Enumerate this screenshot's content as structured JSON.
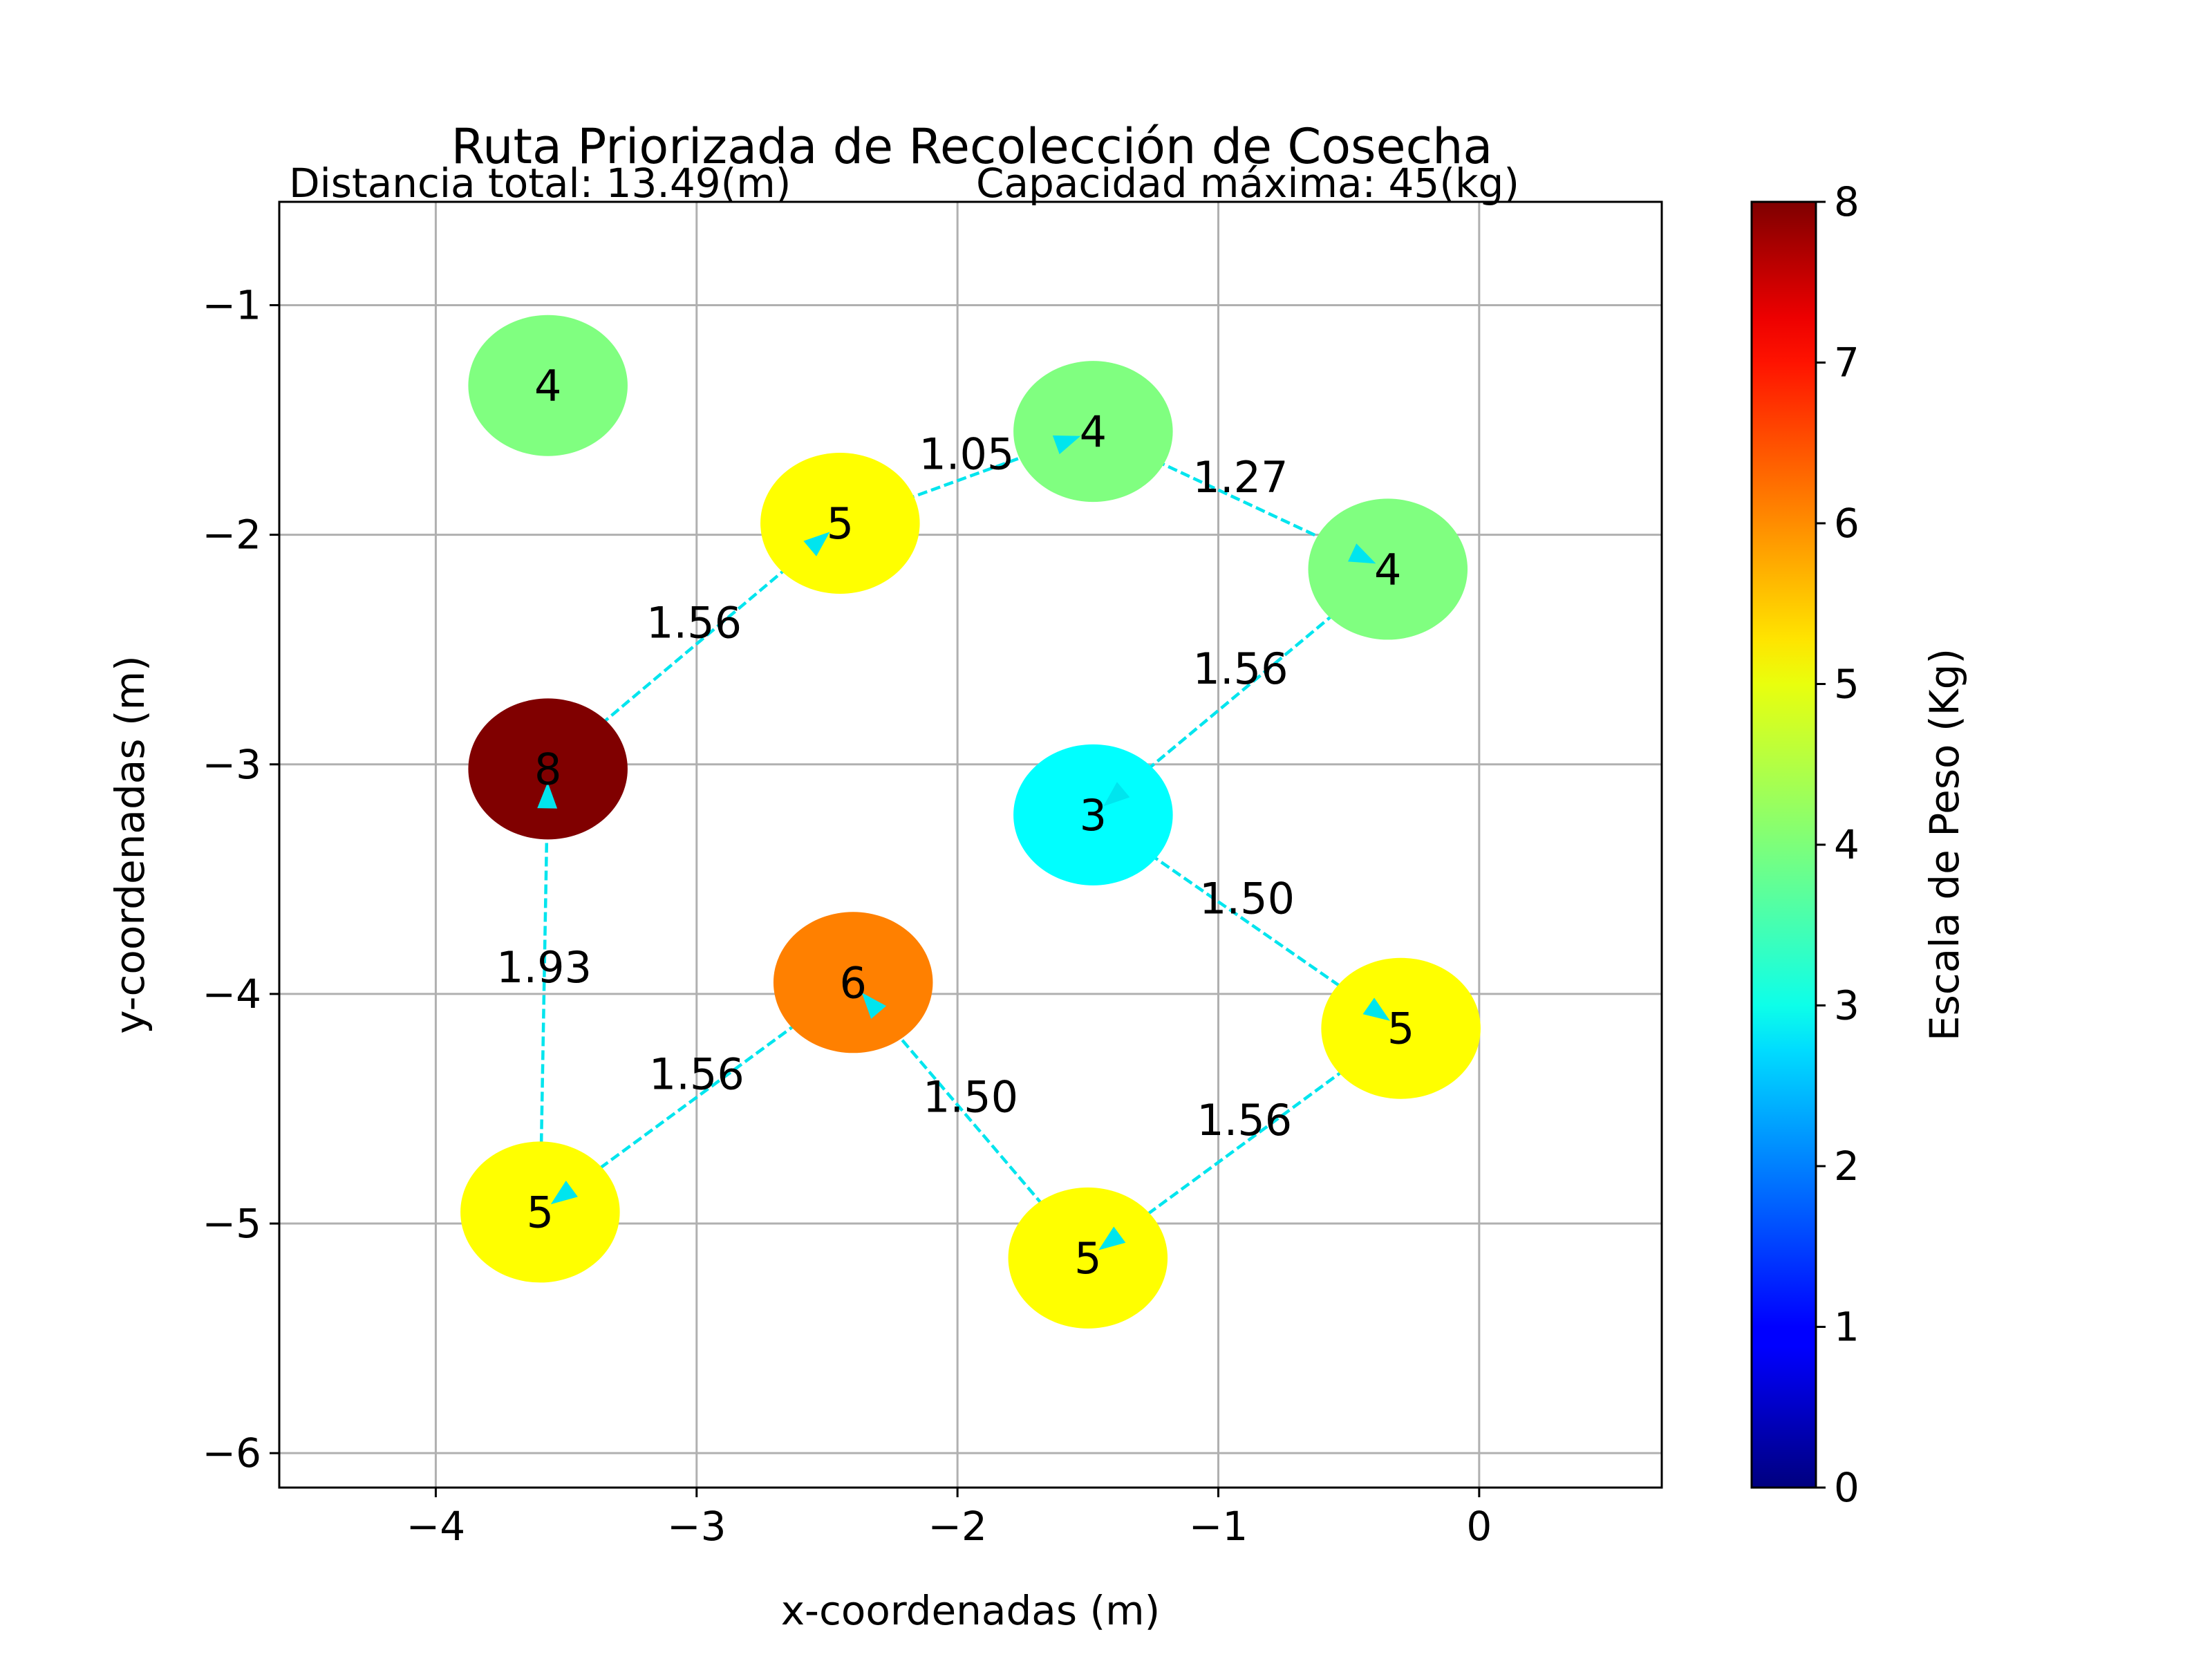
{
  "chart_data": {
    "type": "scatter",
    "title": "Ruta Priorizada de Recolección de Cosecha",
    "subtitle_left": "Distancia total: 13.49(m)",
    "subtitle_right": "Capacidad máxima: 45(kg)",
    "xlabel": "x-coordenadas (m)",
    "ylabel": "y-coordenadas (m)",
    "xlim": [
      -4.6,
      0.7
    ],
    "ylim": [
      -6.15,
      -0.55
    ],
    "xticks": [
      -4,
      -3,
      -2,
      -1,
      0
    ],
    "yticks": [
      -1,
      -2,
      -3,
      -4,
      -5,
      -6
    ],
    "xtick_labels": [
      "−4",
      "−3",
      "−2",
      "−1",
      "0"
    ],
    "ytick_labels": [
      "−1",
      "−2",
      "−3",
      "−4",
      "−5",
      "−6"
    ],
    "grid": true,
    "points": [
      {
        "x": -3.57,
        "y": -1.35,
        "weight": 4
      },
      {
        "x": -1.48,
        "y": -1.55,
        "weight": 4
      },
      {
        "x": -2.45,
        "y": -1.95,
        "weight": 5
      },
      {
        "x": -0.35,
        "y": -2.15,
        "weight": 4
      },
      {
        "x": -3.57,
        "y": -3.02,
        "weight": 8
      },
      {
        "x": -1.48,
        "y": -3.22,
        "weight": 3
      },
      {
        "x": -2.4,
        "y": -3.95,
        "weight": 6
      },
      {
        "x": -0.3,
        "y": -4.15,
        "weight": 5
      },
      {
        "x": -3.6,
        "y": -4.95,
        "weight": 5
      },
      {
        "x": -1.5,
        "y": -5.15,
        "weight": 5
      }
    ],
    "point_labels": [
      "4",
      "4",
      "5",
      "4",
      "8",
      "3",
      "6",
      "5",
      "5",
      "5"
    ],
    "route": [
      {
        "from": 5,
        "to": 7,
        "distance": "1.50"
      },
      {
        "from": 7,
        "to": 9,
        "distance": "1.56"
      },
      {
        "from": 9,
        "to": 6,
        "distance": "1.50"
      },
      {
        "from": 6,
        "to": 8,
        "distance": "1.56"
      },
      {
        "from": 8,
        "to": 4,
        "distance": "1.93"
      },
      {
        "from": 4,
        "to": 2,
        "distance": "1.56"
      },
      {
        "from": 2,
        "to": 1,
        "distance": "1.05"
      },
      {
        "from": 1,
        "to": 3,
        "distance": "1.27"
      },
      {
        "from": 3,
        "to": 5,
        "distance": "1.56"
      }
    ],
    "route_color": "#00e5ee",
    "colorbar": {
      "label": "Escala de Peso (Kg)",
      "min": 0,
      "max": 8,
      "ticks": [
        "0",
        "1",
        "2",
        "3",
        "4",
        "5",
        "6",
        "7",
        "8"
      ],
      "colormap": "jet"
    }
  }
}
